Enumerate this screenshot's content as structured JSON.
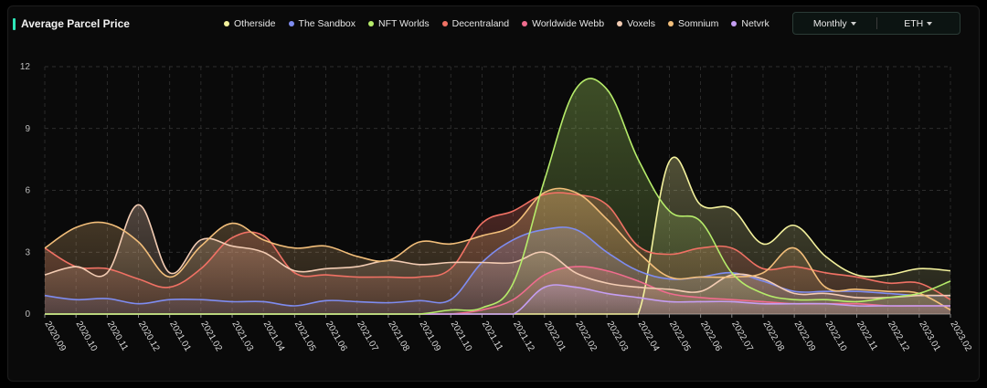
{
  "header": {
    "title": "Average Parcel Price"
  },
  "controls": {
    "period": "Monthly",
    "currency": "ETH"
  },
  "colors": {
    "accent": "#2ee6b8",
    "Otherside": "#f3f19c",
    "The Sandbox": "#7e8cf0",
    "NFT Worlds": "#b6ec6a",
    "Decentraland": "#f07164",
    "Worldwide Webb": "#f06c8e",
    "Voxels": "#f3ccb3",
    "Somnium": "#f2be7a",
    "Netvrk": "#c59ef2"
  },
  "chart_data": {
    "type": "area",
    "title": "Average Parcel Price",
    "xlabel": "",
    "ylabel": "",
    "ylim": [
      0,
      12
    ],
    "yticks": [
      0,
      3,
      6,
      9,
      12
    ],
    "grid": true,
    "legend_position": "top",
    "categories": [
      "2020.09",
      "2020.10",
      "2020.11",
      "2020.12",
      "2021.01",
      "2021.02",
      "2021.03",
      "2021.04",
      "2021.05",
      "2021.06",
      "2021.07",
      "2021.08",
      "2021.09",
      "2021.10",
      "2021.11",
      "2021.12",
      "2022.01",
      "2022.02",
      "2022.03",
      "2022.04",
      "2022.05",
      "2022.06",
      "2022.07",
      "2022.08",
      "2022.09",
      "2022.10",
      "2022.11",
      "2022.12",
      "2023.01",
      "2023.02"
    ],
    "series": [
      {
        "name": "Otherside",
        "values": [
          0,
          0,
          0,
          0,
          0,
          0,
          0,
          0,
          0,
          0,
          0,
          0,
          0,
          0,
          0,
          0,
          0,
          0,
          0,
          0,
          7.4,
          5.3,
          5.1,
          3.4,
          4.3,
          2.8,
          1.9,
          1.9,
          2.2,
          2.1
        ]
      },
      {
        "name": "The Sandbox",
        "values": [
          0.9,
          0.7,
          0.75,
          0.5,
          0.7,
          0.7,
          0.6,
          0.6,
          0.4,
          0.65,
          0.6,
          0.55,
          0.65,
          0.7,
          2.5,
          3.6,
          4.1,
          4.1,
          3.0,
          2.1,
          1.7,
          1.8,
          2.0,
          1.6,
          1.1,
          1.1,
          1.1,
          1.0,
          0.9,
          0.9
        ]
      },
      {
        "name": "NFT Worlds",
        "values": [
          0,
          0,
          0,
          0,
          0,
          0,
          0,
          0,
          0,
          0,
          0,
          0,
          0,
          0.2,
          0.3,
          1.5,
          6.5,
          10.9,
          10.9,
          7.5,
          5.0,
          4.5,
          2.0,
          1.0,
          0.7,
          0.7,
          0.6,
          0.8,
          1.0,
          1.6
        ]
      },
      {
        "name": "Decentraland",
        "values": [
          3.2,
          2.3,
          2.2,
          1.7,
          1.3,
          2.2,
          3.7,
          3.8,
          2.0,
          1.9,
          1.8,
          1.8,
          1.8,
          2.2,
          4.4,
          5.0,
          5.8,
          5.8,
          5.3,
          3.3,
          2.9,
          3.2,
          3.2,
          2.2,
          2.3,
          2.0,
          1.8,
          1.5,
          1.5,
          0.7
        ]
      },
      {
        "name": "Worldwide Webb",
        "values": [
          0,
          0,
          0,
          0,
          0,
          0,
          0,
          0,
          0,
          0,
          0,
          0,
          0,
          0,
          0.2,
          0.7,
          1.9,
          2.3,
          2.1,
          1.6,
          1.0,
          0.8,
          0.7,
          0.6,
          0.5,
          0.5,
          0.5,
          0.4,
          0.4,
          0.4
        ]
      },
      {
        "name": "Voxels",
        "values": [
          1.9,
          2.3,
          2.0,
          5.3,
          2.0,
          3.6,
          3.3,
          3.0,
          2.1,
          2.2,
          2.3,
          2.6,
          2.4,
          2.5,
          2.5,
          2.5,
          3.0,
          2.0,
          1.5,
          1.3,
          1.2,
          1.1,
          1.9,
          1.7,
          1.0,
          1.0,
          0.8,
          0.8,
          0.9,
          0.9
        ]
      },
      {
        "name": "Somnium",
        "values": [
          3.2,
          4.2,
          4.4,
          3.5,
          1.8,
          3.3,
          4.4,
          3.6,
          3.2,
          3.3,
          2.8,
          2.6,
          3.5,
          3.4,
          3.8,
          4.3,
          5.9,
          5.9,
          4.6,
          3.0,
          1.8,
          1.8,
          1.8,
          2.0,
          3.2,
          1.3,
          1.2,
          1.1,
          1.0,
          0.2
        ]
      },
      {
        "name": "Netvrk",
        "values": [
          0,
          0,
          0,
          0,
          0,
          0,
          0,
          0,
          0,
          0,
          0,
          0,
          0,
          0,
          0,
          0,
          1.3,
          1.3,
          1.0,
          0.8,
          0.6,
          0.6,
          0.6,
          0.5,
          0.5,
          0.5,
          0.4,
          0.4,
          0.4,
          0.4
        ]
      }
    ]
  }
}
